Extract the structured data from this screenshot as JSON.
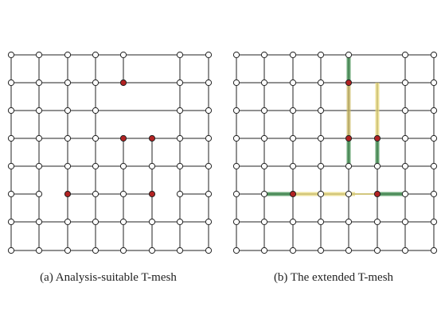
{
  "figures": [
    {
      "caption": "(a) Analysis-suitable T-mesh"
    },
    {
      "caption": "(b) The extended T-mesh"
    }
  ]
}
